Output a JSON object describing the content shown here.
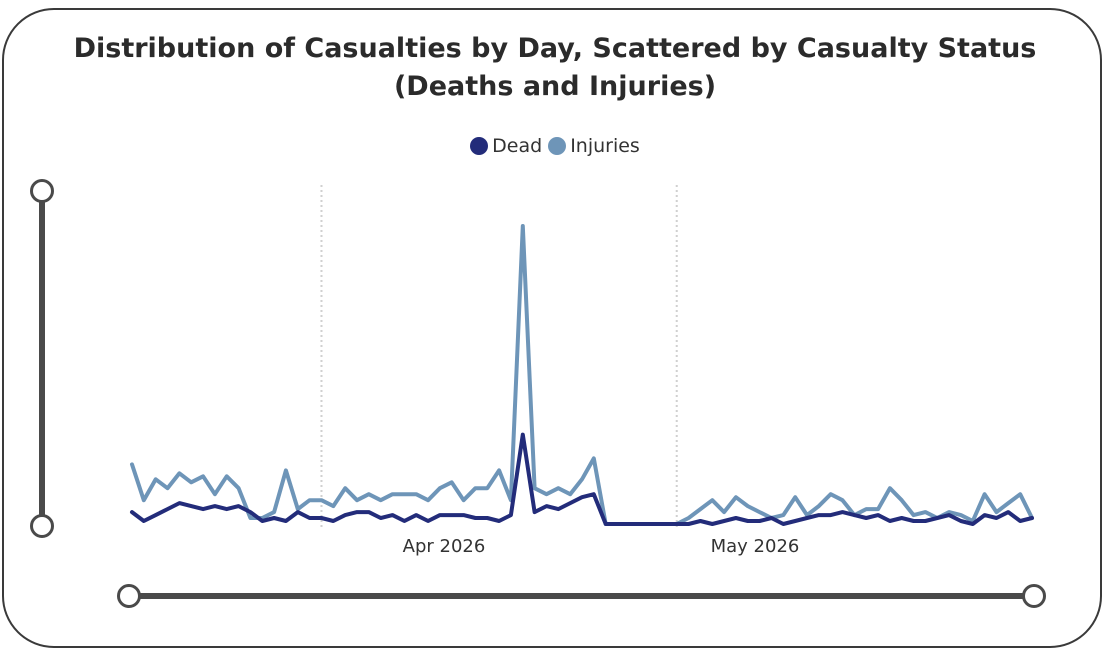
{
  "chart_data": {
    "type": "line",
    "title": "Distribution of Casualties by Day, Scattered by Casualty Status",
    "subtitle": "(Deaths and Injuries)",
    "x_ticks": [
      "Apr 2026",
      "May 2026"
    ],
    "grid": "vertical dotted lines at month boundaries",
    "legend_position": "top-center",
    "x": [
      "2026-03-16",
      "2026-03-17",
      "2026-03-18",
      "2026-03-19",
      "2026-03-20",
      "2026-03-21",
      "2026-03-22",
      "2026-03-23",
      "2026-03-24",
      "2026-03-25",
      "2026-03-26",
      "2026-03-27",
      "2026-03-28",
      "2026-03-29",
      "2026-03-30",
      "2026-03-31",
      "2026-04-01",
      "2026-04-02",
      "2026-04-03",
      "2026-04-04",
      "2026-04-05",
      "2026-04-06",
      "2026-04-07",
      "2026-04-08",
      "2026-04-09",
      "2026-04-10",
      "2026-04-11",
      "2026-04-12",
      "2026-04-13",
      "2026-04-14",
      "2026-04-15",
      "2026-04-16",
      "2026-04-17",
      "2026-04-18",
      "2026-04-19",
      "2026-04-20",
      "2026-04-21",
      "2026-04-22",
      "2026-04-23",
      "2026-04-24",
      "2026-04-25",
      "2026-04-26",
      "2026-04-27",
      "2026-04-28",
      "2026-04-29",
      "2026-04-30",
      "2026-05-01",
      "2026-05-02",
      "2026-05-03",
      "2026-05-04",
      "2026-05-05",
      "2026-05-06",
      "2026-05-07",
      "2026-05-08",
      "2026-05-09",
      "2026-05-10",
      "2026-05-11",
      "2026-05-12",
      "2026-05-13",
      "2026-05-14",
      "2026-05-15",
      "2026-05-16",
      "2026-05-17",
      "2026-05-18",
      "2026-05-19",
      "2026-05-20",
      "2026-05-21",
      "2026-05-22",
      "2026-05-23",
      "2026-05-24",
      "2026-05-25",
      "2026-05-26",
      "2026-05-27",
      "2026-05-28",
      "2026-05-29",
      "2026-05-30",
      "2026-05-31"
    ],
    "ylim": [
      0,
      100
    ],
    "series": [
      {
        "name": "Dead",
        "color": "#232c7a",
        "values": [
          4,
          1,
          3,
          5,
          7,
          6,
          5,
          6,
          5,
          6,
          4,
          1,
          2,
          1,
          4,
          2,
          2,
          1,
          3,
          4,
          4,
          2,
          3,
          1,
          3,
          1,
          3,
          3,
          3,
          2,
          2,
          1,
          3,
          30,
          4,
          6,
          5,
          7,
          9,
          10,
          0,
          0,
          0,
          0,
          0,
          0,
          0,
          0,
          1,
          0,
          1,
          2,
          1,
          1,
          2,
          0,
          1,
          2,
          3,
          3,
          4,
          3,
          2,
          3,
          1,
          2,
          1,
          1,
          2,
          3,
          1,
          0,
          3,
          2,
          4,
          1,
          2
        ]
      },
      {
        "name": "Injuries",
        "color": "#6e95b8",
        "values": [
          20,
          8,
          15,
          12,
          17,
          14,
          16,
          10,
          16,
          12,
          2,
          2,
          4,
          18,
          5,
          8,
          8,
          6,
          12,
          8,
          10,
          8,
          10,
          10,
          10,
          8,
          12,
          14,
          8,
          12,
          12,
          18,
          8,
          100,
          12,
          10,
          12,
          10,
          15,
          22,
          0,
          0,
          0,
          0,
          0,
          0,
          0,
          2,
          5,
          8,
          4,
          9,
          6,
          4,
          2,
          3,
          9,
          3,
          6,
          10,
          8,
          3,
          5,
          5,
          12,
          8,
          3,
          4,
          2,
          4,
          3,
          1,
          10,
          4,
          7,
          10,
          2
        ]
      }
    ]
  }
}
